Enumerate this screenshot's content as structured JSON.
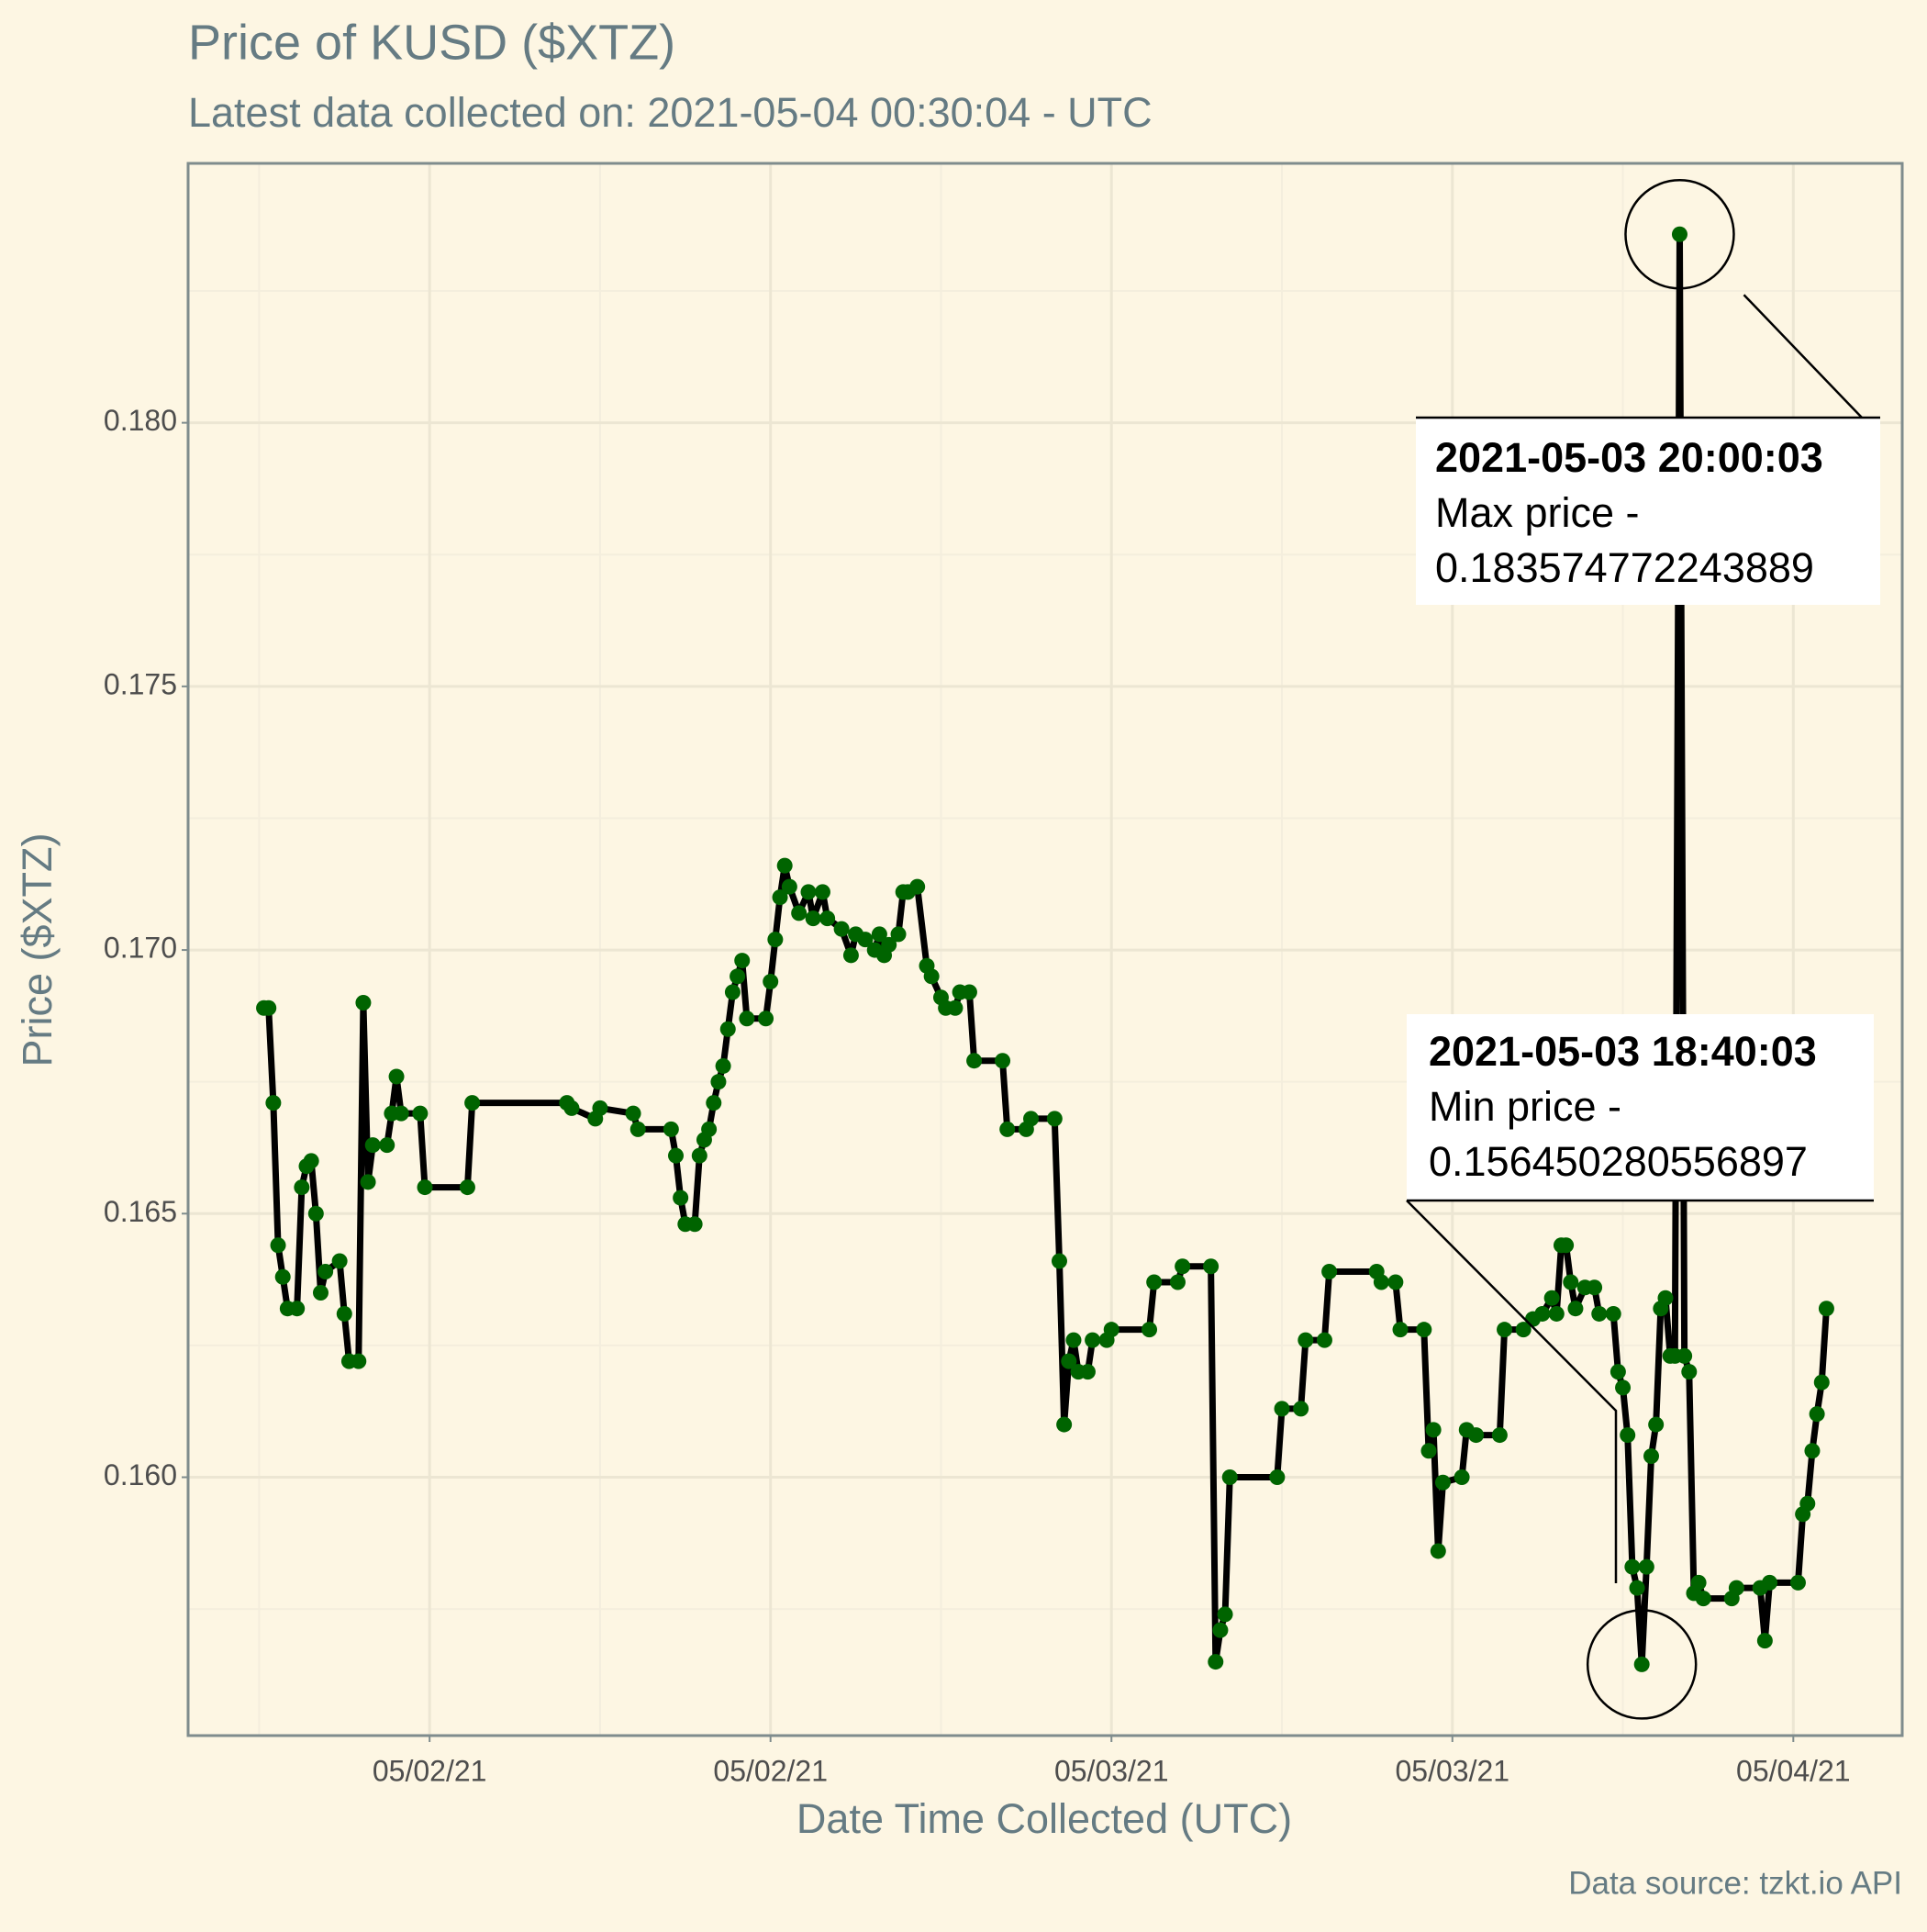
{
  "chart_data": {
    "type": "line",
    "title": "Price of KUSD ($XTZ)",
    "subtitle": "Latest data collected on: 2021-05-04 00:30:04  - UTC",
    "x_label": "Date Time Collected (UTC)",
    "y_label": "Price ($XTZ)",
    "caption": "Data source: tzkt.io API",
    "x": [
      "2021-05-01 18:10",
      "2021-05-01 18:20",
      "2021-05-01 18:30",
      "2021-05-01 18:40",
      "2021-05-01 18:50",
      "2021-05-01 19:00",
      "2021-05-01 19:20",
      "2021-05-01 19:30",
      "2021-05-01 19:40",
      "2021-05-01 19:50",
      "2021-05-01 20:00",
      "2021-05-01 20:10",
      "2021-05-01 20:20",
      "2021-05-01 20:50",
      "2021-05-01 21:00",
      "2021-05-01 21:10",
      "2021-05-01 21:30",
      "2021-05-01 21:40",
      "2021-05-01 21:50",
      "2021-05-01 22:00",
      "2021-05-01 22:30",
      "2021-05-01 22:40",
      "2021-05-01 22:50",
      "2021-05-01 23:00",
      "2021-05-01 23:40",
      "2021-05-01 23:50",
      "2021-05-02 01:20",
      "2021-05-02 01:30",
      "2021-05-02 04:50",
      "2021-05-02 05:00",
      "2021-05-02 05:50",
      "2021-05-02 06:00",
      "2021-05-02 07:10",
      "2021-05-02 07:20",
      "2021-05-02 08:30",
      "2021-05-02 08:40",
      "2021-05-02 08:50",
      "2021-05-02 09:00",
      "2021-05-02 09:20",
      "2021-05-02 09:30",
      "2021-05-02 09:40",
      "2021-05-02 09:50",
      "2021-05-02 10:00",
      "2021-05-02 10:10",
      "2021-05-02 10:20",
      "2021-05-02 10:30",
      "2021-05-02 10:40",
      "2021-05-02 10:50",
      "2021-05-02 11:00",
      "2021-05-02 11:10",
      "2021-05-02 11:50",
      "2021-05-02 12:00",
      "2021-05-02 12:10",
      "2021-05-02 12:20",
      "2021-05-02 12:30",
      "2021-05-02 12:40",
      "2021-05-02 13:00",
      "2021-05-02 13:20",
      "2021-05-02 13:30",
      "2021-05-02 13:50",
      "2021-05-02 14:00",
      "2021-05-02 14:30",
      "2021-05-02 14:50",
      "2021-05-02 15:00",
      "2021-05-02 15:20",
      "2021-05-02 15:40",
      "2021-05-02 15:50",
      "2021-05-02 16:00",
      "2021-05-02 16:10",
      "2021-05-02 16:30",
      "2021-05-02 16:40",
      "2021-05-02 16:50",
      "2021-05-02 17:10",
      "2021-05-02 17:30",
      "2021-05-02 17:40",
      "2021-05-02 18:00",
      "2021-05-02 18:10",
      "2021-05-02 18:30",
      "2021-05-02 18:40",
      "2021-05-02 19:00",
      "2021-05-02 19:10",
      "2021-05-02 20:10",
      "2021-05-02 20:20",
      "2021-05-02 21:00",
      "2021-05-02 21:10",
      "2021-05-02 22:00",
      "2021-05-02 22:10",
      "2021-05-02 22:20",
      "2021-05-02 22:30",
      "2021-05-02 22:40",
      "2021-05-02 22:50",
      "2021-05-02 23:10",
      "2021-05-02 23:20",
      "2021-05-02 23:50",
      "2021-05-03 00:00",
      "2021-05-03 01:20",
      "2021-05-03 01:30",
      "2021-05-03 02:20",
      "2021-05-03 02:30",
      "2021-05-03 03:30",
      "2021-05-03 03:40",
      "2021-05-03 03:50",
      "2021-05-03 04:00",
      "2021-05-03 04:10",
      "2021-05-03 05:50",
      "2021-05-03 06:00",
      "2021-05-03 06:40",
      "2021-05-03 06:50",
      "2021-05-03 07:30",
      "2021-05-03 07:40",
      "2021-05-03 09:20",
      "2021-05-03 09:30",
      "2021-05-03 10:00",
      "2021-05-03 10:10",
      "2021-05-03 11:00",
      "2021-05-03 11:10",
      "2021-05-03 11:20",
      "2021-05-03 11:30",
      "2021-05-03 11:40",
      "2021-05-03 12:20",
      "2021-05-03 12:30",
      "2021-05-03 12:50",
      "2021-05-03 13:40",
      "2021-05-03 13:50",
      "2021-05-03 14:30",
      "2021-05-03 14:50",
      "2021-05-03 15:10",
      "2021-05-03 15:30",
      "2021-05-03 15:40",
      "2021-05-03 15:50",
      "2021-05-03 16:00",
      "2021-05-03 16:10",
      "2021-05-03 16:20",
      "2021-05-03 16:40",
      "2021-05-03 17:00",
      "2021-05-03 17:10",
      "2021-05-03 17:40",
      "2021-05-03 17:50",
      "2021-05-03 18:00",
      "2021-05-03 18:10",
      "2021-05-03 18:20",
      "2021-05-03 18:30",
      "2021-05-03 18:40",
      "2021-05-03 18:50",
      "2021-05-03 19:00",
      "2021-05-03 19:10",
      "2021-05-03 19:20",
      "2021-05-03 19:30",
      "2021-05-03 19:40",
      "2021-05-03 19:50",
      "2021-05-03 20:00",
      "2021-05-03 20:10",
      "2021-05-03 20:20",
      "2021-05-03 20:30",
      "2021-05-03 20:40",
      "2021-05-03 20:50",
      "2021-05-03 21:50",
      "2021-05-03 22:00",
      "2021-05-03 22:50",
      "2021-05-03 23:00",
      "2021-05-03 23:10",
      "2021-05-04 00:10",
      "2021-05-04 00:20",
      "2021-05-04 00:30",
      "2021-05-04 00:40",
      "2021-05-04 00:50",
      "2021-05-04 01:00",
      "2021-05-04 01:10"
    ],
    "series": [
      {
        "color": "#006400",
        "line_color": "#000000",
        "values": [
          0.1689,
          0.1689,
          0.1671,
          0.1644,
          0.1638,
          0.1632,
          0.1632,
          0.1655,
          0.1659,
          0.166,
          0.165,
          0.1635,
          0.1639,
          0.1641,
          0.1631,
          0.1622,
          0.1622,
          0.169,
          0.1656,
          0.1663,
          0.1663,
          0.1669,
          0.1676,
          0.1669,
          0.1669,
          0.1655,
          0.1655,
          0.1671,
          0.1671,
          0.167,
          0.1668,
          0.167,
          0.1669,
          0.1666,
          0.1666,
          0.1661,
          0.1653,
          0.1648,
          0.1648,
          0.1661,
          0.1664,
          0.1666,
          0.1671,
          0.1675,
          0.1678,
          0.1685,
          0.1692,
          0.1695,
          0.1698,
          0.1687,
          0.1687,
          0.1694,
          0.1702,
          0.171,
          0.1716,
          0.1712,
          0.1707,
          0.1711,
          0.1706,
          0.1711,
          0.1706,
          0.1704,
          0.1699,
          0.1703,
          0.1702,
          0.17,
          0.1703,
          0.1699,
          0.1701,
          0.1703,
          0.1711,
          0.1711,
          0.1712,
          0.1697,
          0.1695,
          0.1691,
          0.1689,
          0.1689,
          0.1692,
          0.1692,
          0.1679,
          0.1679,
          0.1666,
          0.1666,
          0.1668,
          0.1668,
          0.1641,
          0.161,
          0.1622,
          0.1626,
          0.162,
          0.162,
          0.1626,
          0.1626,
          0.1628,
          0.1628,
          0.1637,
          0.1637,
          0.164,
          0.164,
          0.1565,
          0.1571,
          0.1574,
          0.16,
          0.16,
          0.1613,
          0.1613,
          0.1626,
          0.1626,
          0.1639,
          0.1639,
          0.1637,
          0.1637,
          0.1628,
          0.1628,
          0.1605,
          0.1609,
          0.1586,
          0.1599,
          0.16,
          0.1609,
          0.1608,
          0.1608,
          0.1628,
          0.1628,
          0.163,
          0.1631,
          0.1634,
          0.1631,
          0.1644,
          0.1644,
          0.1637,
          0.1632,
          0.1636,
          0.1636,
          0.1631,
          0.1631,
          0.162,
          0.1617,
          0.1608,
          0.1583,
          0.1579,
          0.156450280556897,
          0.1583,
          0.1604,
          0.161,
          0.1632,
          0.1634,
          0.1623,
          0.1623,
          0.183574772243889,
          0.1623,
          0.162,
          0.1578,
          0.158,
          0.1577,
          0.1577,
          0.1579,
          0.1579,
          0.1569,
          0.158,
          0.158,
          0.1593,
          0.1595,
          0.1605,
          0.1612,
          0.1618,
          0.1632
        ]
      }
    ],
    "xlim": [
      "2021-05-01 15:30",
      "2021-05-04 03:50"
    ],
    "ylim": [
      0.1551,
      0.18492
    ],
    "xticks": [
      {
        "value": "2021-05-02 00:00",
        "label": "05/02/21"
      },
      {
        "value": "2021-05-02 12:00",
        "label": "05/02/21"
      },
      {
        "value": "2021-05-03 00:00",
        "label": "05/03/21"
      },
      {
        "value": "2021-05-03 12:00",
        "label": "05/03/21"
      },
      {
        "value": "2021-05-04 00:00",
        "label": "05/04/21"
      }
    ],
    "yticks": [
      {
        "value": 0.16,
        "label": "0.160"
      },
      {
        "value": 0.165,
        "label": "0.165"
      },
      {
        "value": 0.17,
        "label": "0.170"
      },
      {
        "value": 0.175,
        "label": "0.175"
      },
      {
        "value": 0.18,
        "label": "0.180"
      }
    ],
    "grid": true,
    "annotations": [
      {
        "title": "2021-05-03 20:00:03",
        "text": [
          "Max price -",
          "0.183574772243889"
        ]
      },
      {
        "title": "2021-05-03 18:40:03",
        "text": [
          "Min price -",
          "0.156450280556897"
        ]
      }
    ]
  }
}
